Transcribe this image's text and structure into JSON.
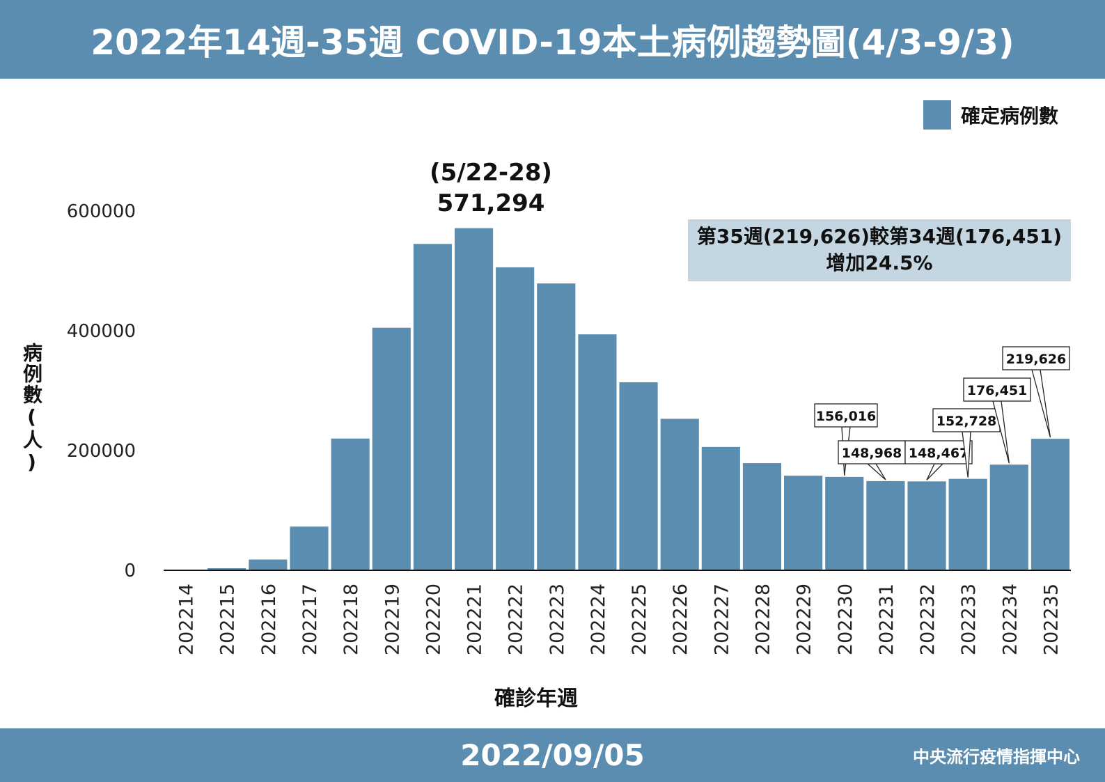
{
  "header": {
    "title": "2022年14週-35週 COVID-19本土病例趨勢圖(4/3-9/3)"
  },
  "legend": {
    "label": "確定病例數",
    "color": "#5b8db0"
  },
  "peak_annotation": {
    "line1": "(5/22-28)",
    "line2": "571,294"
  },
  "note": {
    "line1": "第35週(219,626)較第34週(176,451)",
    "line2": "增加24.5%"
  },
  "footer": {
    "date": "2022/09/05",
    "org": "中央流行疫情指揮中心"
  },
  "chart_data": {
    "type": "bar",
    "title": "2022年14週-35週 COVID-19本土病例趨勢圖(4/3-9/3)",
    "xlabel": "確診年週",
    "ylabel": "病例數(人)",
    "ylim": [
      0,
      600000
    ],
    "yticks": [
      "0",
      "200000",
      "400000",
      "600000"
    ],
    "grid": false,
    "legend_position": "top-right",
    "bar_color": "#5b8db0",
    "categories": [
      "202214",
      "202215",
      "202216",
      "202217",
      "202218",
      "202219",
      "202220",
      "202221",
      "202222",
      "202223",
      "202224",
      "202225",
      "202226",
      "202227",
      "202228",
      "202229",
      "202230",
      "202231",
      "202232",
      "202233",
      "202234",
      "202235"
    ],
    "series": [
      {
        "name": "確定病例數",
        "values": [
          500,
          3500,
          18000,
          73000,
          220000,
          405000,
          545000,
          571294,
          506000,
          479000,
          394000,
          314000,
          253000,
          206000,
          179000,
          158000,
          156016,
          148968,
          148467,
          152728,
          176451,
          219626
        ]
      }
    ],
    "callouts": [
      {
        "category": "202230",
        "text": "156,016"
      },
      {
        "category": "202231",
        "text": "148,968"
      },
      {
        "category": "202232",
        "text": "148,467"
      },
      {
        "category": "202233",
        "text": "152,728"
      },
      {
        "category": "202234",
        "text": "176,451"
      },
      {
        "category": "202235",
        "text": "219,626"
      }
    ]
  }
}
